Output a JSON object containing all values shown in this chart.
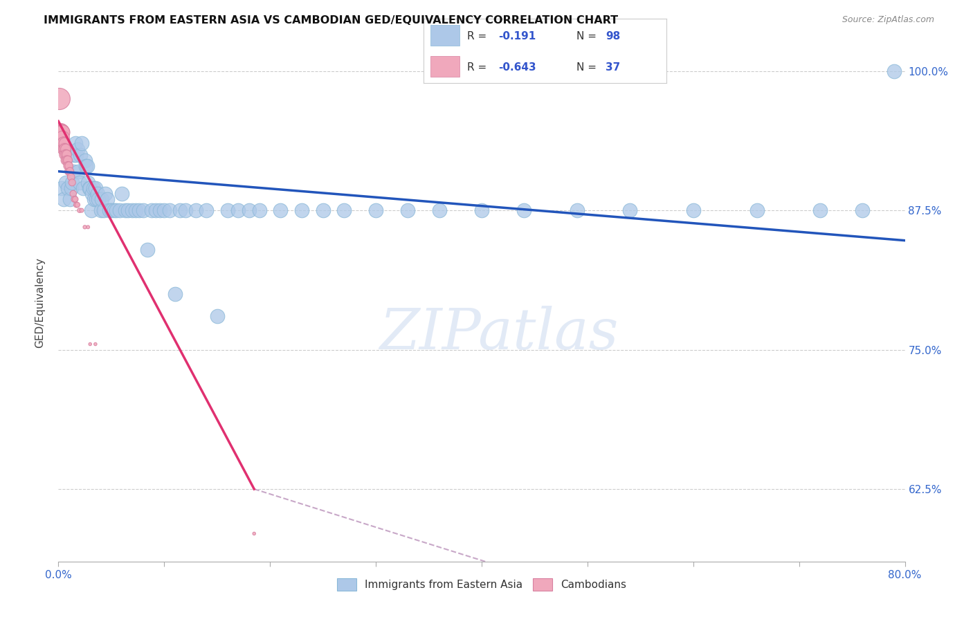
{
  "title": "IMMIGRANTS FROM EASTERN ASIA VS CAMBODIAN GED/EQUIVALENCY CORRELATION CHART",
  "source": "Source: ZipAtlas.com",
  "ylabel": "GED/Equivalency",
  "watermark": "ZIPatlas",
  "blue_color": "#adc8e8",
  "pink_color": "#f0a8bc",
  "blue_line_color": "#2255bb",
  "pink_line_color": "#e03070",
  "dashed_color": "#ccbbcc",
  "blue_scatter": {
    "x": [
      0.003,
      0.005,
      0.007,
      0.009,
      0.011,
      0.012,
      0.013,
      0.014,
      0.015,
      0.016,
      0.017,
      0.018,
      0.019,
      0.02,
      0.021,
      0.022,
      0.023,
      0.025,
      0.026,
      0.027,
      0.028,
      0.029,
      0.03,
      0.031,
      0.032,
      0.033,
      0.034,
      0.035,
      0.036,
      0.037,
      0.038,
      0.04,
      0.041,
      0.043,
      0.044,
      0.046,
      0.048,
      0.05,
      0.053,
      0.055,
      0.058,
      0.06,
      0.063,
      0.066,
      0.07,
      0.073,
      0.076,
      0.08,
      0.084,
      0.088,
      0.092,
      0.096,
      0.1,
      0.105,
      0.11,
      0.115,
      0.12,
      0.13,
      0.14,
      0.15,
      0.16,
      0.17,
      0.18,
      0.19,
      0.21,
      0.23,
      0.25,
      0.27,
      0.3,
      0.33,
      0.36,
      0.4,
      0.44,
      0.49,
      0.54,
      0.6,
      0.66,
      0.72,
      0.76,
      0.79
    ],
    "y": [
      0.895,
      0.885,
      0.9,
      0.895,
      0.885,
      0.895,
      0.9,
      0.91,
      0.925,
      0.935,
      0.925,
      0.93,
      0.91,
      0.9,
      0.925,
      0.935,
      0.895,
      0.92,
      0.915,
      0.915,
      0.9,
      0.895,
      0.895,
      0.875,
      0.89,
      0.895,
      0.885,
      0.895,
      0.885,
      0.89,
      0.885,
      0.875,
      0.885,
      0.875,
      0.89,
      0.885,
      0.875,
      0.875,
      0.875,
      0.875,
      0.875,
      0.89,
      0.875,
      0.875,
      0.875,
      0.875,
      0.875,
      0.875,
      0.84,
      0.875,
      0.875,
      0.875,
      0.875,
      0.875,
      0.8,
      0.875,
      0.875,
      0.875,
      0.875,
      0.78,
      0.875,
      0.875,
      0.875,
      0.875,
      0.875,
      0.875,
      0.875,
      0.875,
      0.875,
      0.875,
      0.875,
      0.875,
      0.875,
      0.875,
      0.875,
      0.875,
      0.875,
      0.875,
      0.875,
      1.0
    ],
    "size": 220
  },
  "pink_scatter": {
    "x": [
      0.001,
      0.002,
      0.003,
      0.003,
      0.004,
      0.004,
      0.005,
      0.005,
      0.005,
      0.006,
      0.006,
      0.006,
      0.006,
      0.007,
      0.007,
      0.007,
      0.008,
      0.008,
      0.009,
      0.009,
      0.01,
      0.01,
      0.011,
      0.012,
      0.013,
      0.014,
      0.015,
      0.016,
      0.017,
      0.018,
      0.02,
      0.022,
      0.025,
      0.028,
      0.03,
      0.035,
      0.185
    ],
    "y": [
      0.975,
      0.945,
      0.945,
      0.945,
      0.945,
      0.94,
      0.935,
      0.935,
      0.93,
      0.93,
      0.935,
      0.93,
      0.925,
      0.93,
      0.925,
      0.92,
      0.925,
      0.92,
      0.92,
      0.915,
      0.91,
      0.915,
      0.91,
      0.905,
      0.9,
      0.89,
      0.885,
      0.885,
      0.88,
      0.88,
      0.875,
      0.875,
      0.86,
      0.86,
      0.755,
      0.755,
      0.585
    ],
    "sizes": [
      500,
      350,
      280,
      250,
      230,
      210,
      190,
      180,
      165,
      155,
      145,
      135,
      125,
      115,
      108,
      100,
      95,
      90,
      85,
      80,
      75,
      70,
      65,
      58,
      52,
      46,
      40,
      36,
      32,
      28,
      22,
      18,
      14,
      12,
      10,
      10,
      10
    ]
  },
  "blue_trendline": {
    "x": [
      0.0,
      0.8
    ],
    "y": [
      0.91,
      0.848
    ]
  },
  "pink_trendline_solid": {
    "x": [
      0.0,
      0.185
    ],
    "y": [
      0.955,
      0.625
    ]
  },
  "pink_trendline_dashed": {
    "x": [
      0.185,
      0.42
    ],
    "y": [
      0.625,
      0.555
    ]
  },
  "xmin": 0.0,
  "xmax": 0.8,
  "ymin": 0.56,
  "ymax": 1.025,
  "yticks": [
    0.625,
    0.75,
    0.875,
    1.0
  ],
  "ytick_labels": [
    "62.5%",
    "75.0%",
    "87.5%",
    "100.0%"
  ],
  "xtick_minor_positions": [
    0.1,
    0.2,
    0.3,
    0.4,
    0.5,
    0.6,
    0.7
  ],
  "legend_blue_label": "Immigrants from Eastern Asia",
  "legend_pink_label": "Cambodians"
}
